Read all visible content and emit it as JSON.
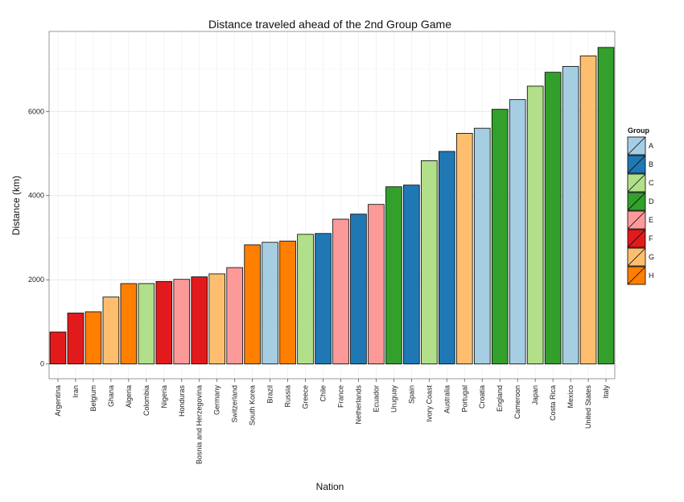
{
  "chart_data": {
    "type": "bar",
    "title": "Distance traveled ahead of the 2nd Group Game",
    "xlabel": "Nation",
    "ylabel": "Distance (km)",
    "ylim": [
      -350,
      7900
    ],
    "yticks": [
      0,
      2000,
      4000,
      6000
    ],
    "grid": true,
    "legend_title": "Group",
    "legend_position": "right",
    "groups": [
      {
        "name": "A",
        "color": "#a6cee3"
      },
      {
        "name": "B",
        "color": "#1f78b4"
      },
      {
        "name": "C",
        "color": "#b2df8a"
      },
      {
        "name": "D",
        "color": "#33a02c"
      },
      {
        "name": "E",
        "color": "#fb9a99"
      },
      {
        "name": "F",
        "color": "#e31a1c"
      },
      {
        "name": "G",
        "color": "#fdbf6f"
      },
      {
        "name": "H",
        "color": "#ff7f00"
      }
    ],
    "categories": [
      "Argentina",
      "Iran",
      "Belgium",
      "Ghana",
      "Algeria",
      "Colombia",
      "Nigeria",
      "Honduras",
      "Bosnia and Herzegovina",
      "Germany",
      "Switzerland",
      "South Korea",
      "Brazil",
      "Russia",
      "Greece",
      "Chile",
      "France",
      "Netherlands",
      "Ecuador",
      "Uruguay",
      "Spain",
      "Ivory Coast",
      "Australia",
      "Portugal",
      "Croatia",
      "England",
      "Cameroon",
      "Japan",
      "Costa Rica",
      "Mexico",
      "United States",
      "Italy"
    ],
    "values": [
      760,
      1210,
      1240,
      1590,
      1910,
      1910,
      1960,
      2010,
      2070,
      2140,
      2290,
      2830,
      2890,
      2920,
      3080,
      3100,
      3440,
      3560,
      3790,
      4210,
      4250,
      4830,
      5050,
      5480,
      5600,
      6050,
      6280,
      6600,
      6930,
      7070,
      7320,
      7520
    ],
    "group_of": [
      "F",
      "F",
      "H",
      "G",
      "H",
      "C",
      "F",
      "E",
      "F",
      "G",
      "E",
      "H",
      "A",
      "H",
      "C",
      "B",
      "E",
      "B",
      "E",
      "D",
      "B",
      "C",
      "B",
      "G",
      "A",
      "D",
      "A",
      "C",
      "D",
      "A",
      "G",
      "D"
    ]
  }
}
